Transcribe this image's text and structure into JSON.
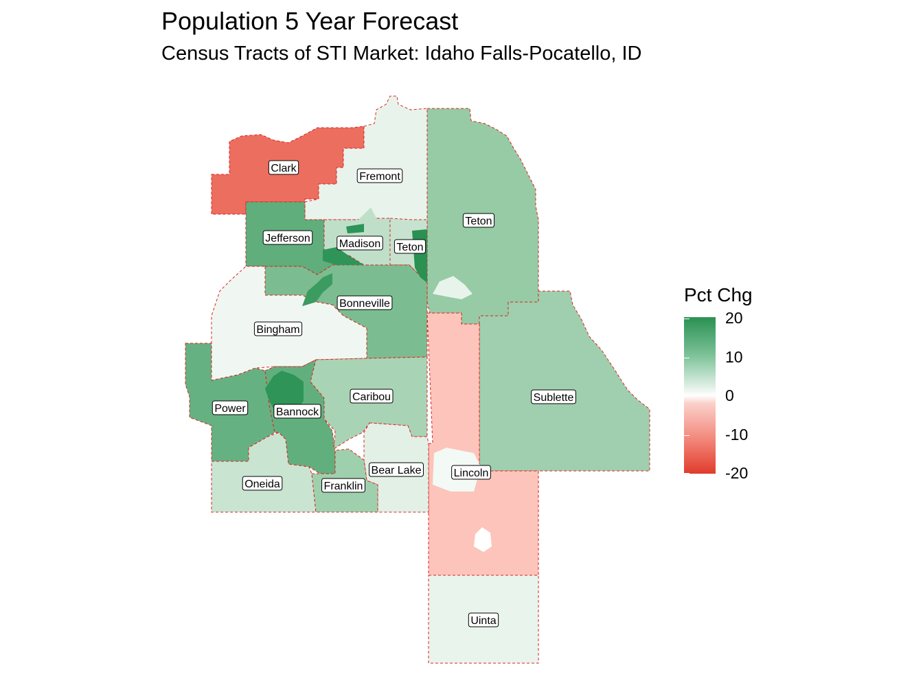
{
  "title": "Population 5 Year Forecast",
  "subtitle": "Census Tracts of STI Market: Idaho Falls-Pocatello, ID",
  "legend": {
    "title": "Pct Chg",
    "ticks": [
      "20",
      "10",
      "0",
      "-10",
      "-20"
    ],
    "high_color": "#2a9152",
    "mid_color": "#ffffff",
    "low_color": "#e03c2c"
  },
  "counties": [
    {
      "name": "Clark",
      "pct_chg": -20,
      "color": "#ec6e5f"
    },
    {
      "name": "Fremont",
      "pct_chg": 5,
      "color": "#e8f3ec"
    },
    {
      "name": "Teton",
      "pct_chg": 11,
      "color": "#96cba5"
    },
    {
      "name": "Jefferson",
      "pct_chg": 15,
      "color": "#5fae7c"
    },
    {
      "name": "Madison",
      "pct_chg": 8,
      "color": "#bfdfc9"
    },
    {
      "name": "Teton",
      "pct_chg": 8,
      "color": "#c7e3cf"
    },
    {
      "name": "Bonneville",
      "pct_chg": 13,
      "color": "#7bbd90"
    },
    {
      "name": "Bingham",
      "pct_chg": 3,
      "color": "#f0f7f2"
    },
    {
      "name": "Power",
      "pct_chg": 15,
      "color": "#66b181"
    },
    {
      "name": "Bannock",
      "pct_chg": 15,
      "color": "#62af7e"
    },
    {
      "name": "Caribou",
      "pct_chg": 9,
      "color": "#a8d4b5"
    },
    {
      "name": "Sublette",
      "pct_chg": 10,
      "color": "#9fcfae"
    },
    {
      "name": "Lincoln",
      "pct_chg": -5,
      "color": "#fcc4ba"
    },
    {
      "name": "Bear Lake",
      "pct_chg": 5,
      "color": "#e2f0e6"
    },
    {
      "name": "Oneida",
      "pct_chg": 7,
      "color": "#c9e4d1"
    },
    {
      "name": "Franklin",
      "pct_chg": 11,
      "color": "#9fd0ad"
    },
    {
      "name": "Uinta",
      "pct_chg": 4,
      "color": "#e9f4ec"
    }
  ]
}
